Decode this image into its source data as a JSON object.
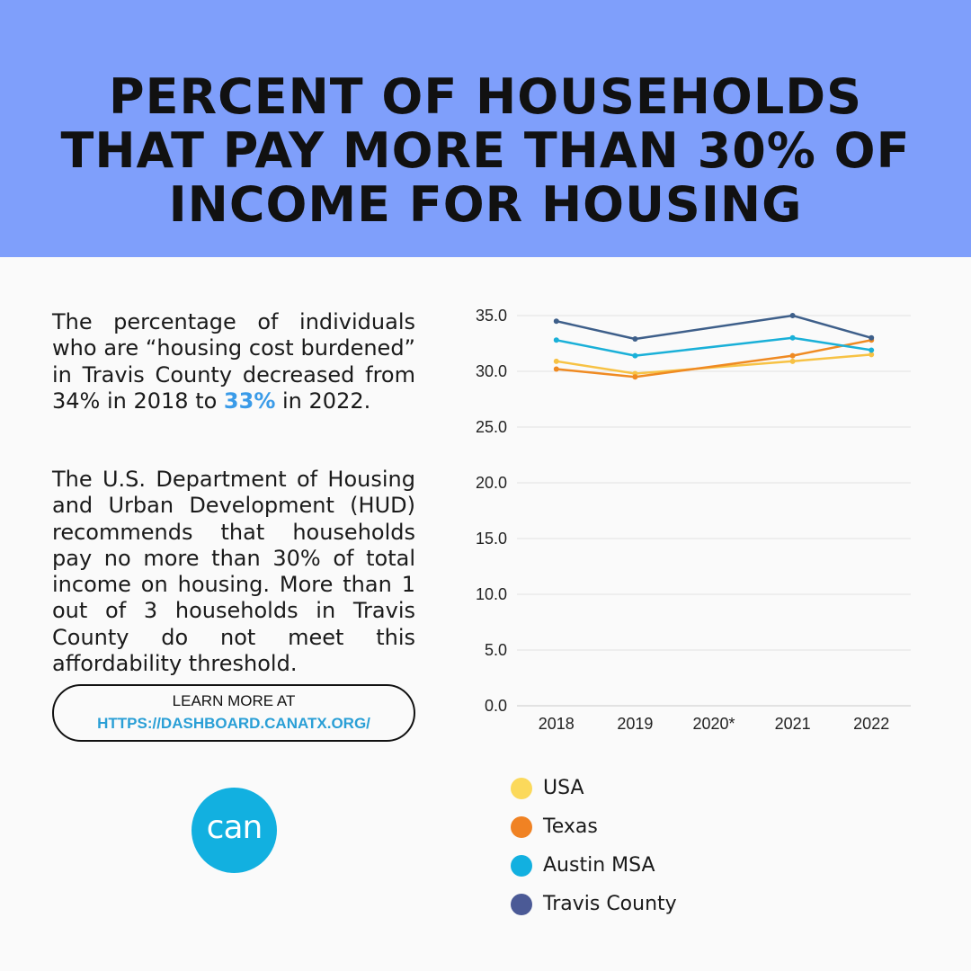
{
  "header": {
    "title": "Percent of households that pay more than 30% of income for housing"
  },
  "body": {
    "para1_text": "The percentage of individuals who are “housing cost burdened” in Travis County decreased from 34% in 2018 to",
    "para1_highlight": "33%",
    "para1_tail": "in 2022.",
    "para2": "The U.S. Department of Housing and Urban Development (HUD) recommends that households pay no more than 30% of total income on housing. More than 1 out of 3 households in Travis County do not meet this affordability threshold.",
    "cta_line1": "LEARN MORE AT",
    "cta_line2": "HTTPS://DASHBOARD.CANATX.ORG/"
  },
  "logo": {
    "text": "can"
  },
  "colors": {
    "header_bg": "#7f9ffb",
    "highlight": "#3a9be8",
    "link": "#2a9fd6",
    "logo": "#12b0e0"
  },
  "chart_data": {
    "type": "line",
    "title": "",
    "xlabel": "",
    "ylabel": "",
    "categories": [
      "2018",
      "2019",
      "2020*",
      "2021",
      "2022"
    ],
    "ylim": [
      0,
      35
    ],
    "yticks": [
      "0.0",
      "5.0",
      "10.0",
      "15.0",
      "20.0",
      "25.0",
      "30.0",
      "35.0"
    ],
    "grid": true,
    "legend_position": "bottom",
    "series": [
      {
        "name": "USA",
        "color": "#f7c244",
        "legend_color": "#fbd95b",
        "values": [
          30.9,
          29.8,
          null,
          30.9,
          31.5
        ]
      },
      {
        "name": "Texas",
        "color": "#ef8a22",
        "legend_color": "#f08223",
        "values": [
          30.2,
          29.5,
          null,
          31.4,
          32.8
        ]
      },
      {
        "name": "Austin MSA",
        "color": "#1ab0d8",
        "legend_color": "#12b0e0",
        "values": [
          32.8,
          31.4,
          null,
          33.0,
          31.9
        ]
      },
      {
        "name": "Travis County",
        "color": "#3e5f8a",
        "legend_color": "#4b5a96",
        "values": [
          34.5,
          32.9,
          null,
          35.0,
          33.0
        ]
      }
    ]
  }
}
